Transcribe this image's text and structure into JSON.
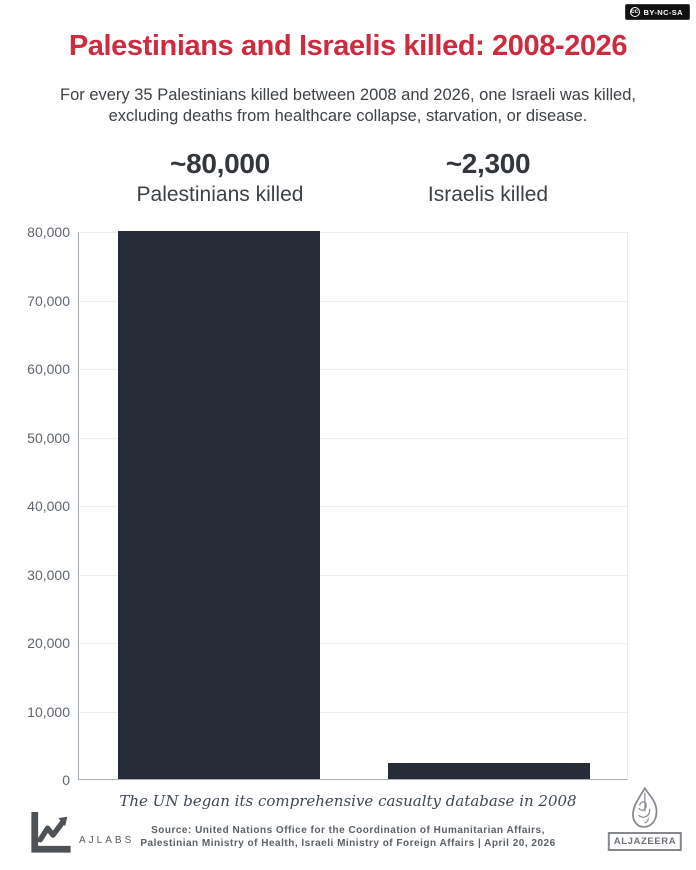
{
  "badge": {
    "cc": "cc",
    "label": "BY-NC-SA"
  },
  "header": {
    "title": "Palestinians and Israelis killed: 2008-2026",
    "subtitle_line1": "For every 35 Palestinians killed between 2008 and 2026, one Israeli was killed,",
    "subtitle_line2": "excluding deaths from healthcare collapse, starvation, or disease."
  },
  "stats": [
    {
      "value": "~80,000",
      "label": "Palestinians killed"
    },
    {
      "value": "~2,300",
      "label": "Israelis killed"
    }
  ],
  "chart_data": {
    "type": "bar",
    "categories": [
      "Palestinians killed",
      "Israelis killed"
    ],
    "values": [
      80000,
      2300
    ],
    "value_labels": [
      "~80,000",
      "~2,300"
    ],
    "title": "Palestinians and Israelis killed: 2008-2026",
    "xlabel": "",
    "ylabel": "",
    "ylim": [
      0,
      80000
    ],
    "yticks": [
      0,
      10000,
      20000,
      30000,
      40000,
      50000,
      60000,
      70000,
      80000
    ],
    "ytick_labels": [
      "0",
      "10,000",
      "20,000",
      "30,000",
      "40,000",
      "50,000",
      "60,000",
      "70,000",
      "80,000"
    ],
    "grid": true,
    "legend": false,
    "bar_color": "#262d39"
  },
  "footer": {
    "note": "The UN began its comprehensive casualty database in 2008",
    "source_line1": "Source: United Nations Office for the Coordination of Humanitarian Affairs,",
    "source_line2": "Palestinian Ministry of Health, Israeli Ministry of Foreign Affairs | April 20, 2026",
    "ajlabs_label": "AJLABS",
    "aljazeera_label": "ALJAZEERA"
  },
  "colors": {
    "title_red": "#ce2b3e",
    "bar": "#262d39",
    "text_dark": "#3a3f45",
    "tick_gray": "#60666d",
    "gridline": "#ededed"
  }
}
